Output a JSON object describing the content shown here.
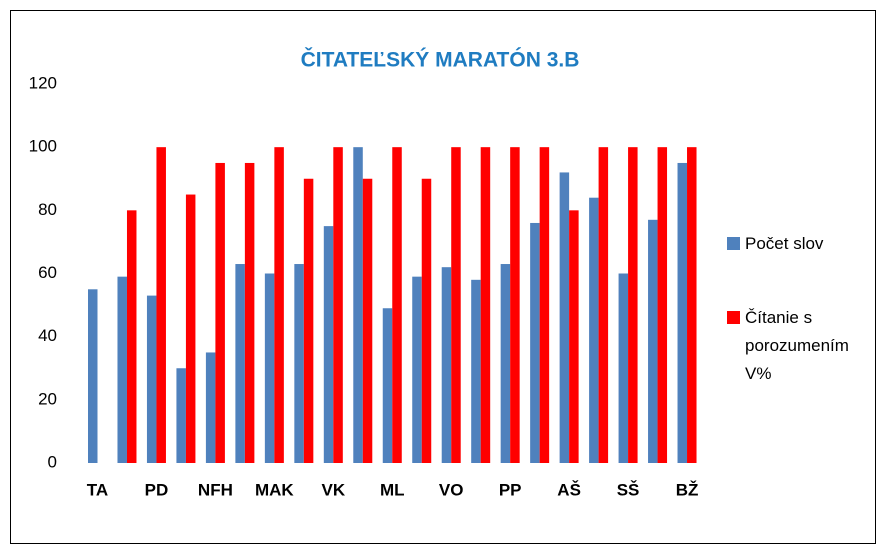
{
  "chart_data": {
    "type": "bar",
    "title": "ČITATEĽSKÝ MARATÓN 3.B",
    "categories": [
      "TA",
      null,
      "PD",
      null,
      "NFH",
      null,
      "MAK",
      null,
      "VK",
      null,
      "ML",
      null,
      "VO",
      null,
      "PP",
      null,
      "AŠ",
      null,
      "SŠ",
      null,
      "BŽ"
    ],
    "series": [
      {
        "name": "Počet slov",
        "color": "#4f81bd",
        "values": [
          55,
          59,
          53,
          30,
          35,
          63,
          60,
          63,
          75,
          100,
          49,
          59,
          62,
          58,
          63,
          76,
          92,
          84,
          60,
          77,
          95
        ]
      },
      {
        "name": "Čítanie s porozumením V%",
        "color": "#ff0000",
        "values": [
          null,
          80,
          100,
          85,
          95,
          95,
          100,
          90,
          100,
          90,
          100,
          90,
          100,
          100,
          100,
          100,
          80,
          100,
          100,
          100,
          100
        ]
      }
    ],
    "ylim": [
      0,
      120
    ],
    "yticks": [
      0,
      20,
      40,
      60,
      80,
      100,
      120
    ],
    "grid": false,
    "legend": "right"
  }
}
